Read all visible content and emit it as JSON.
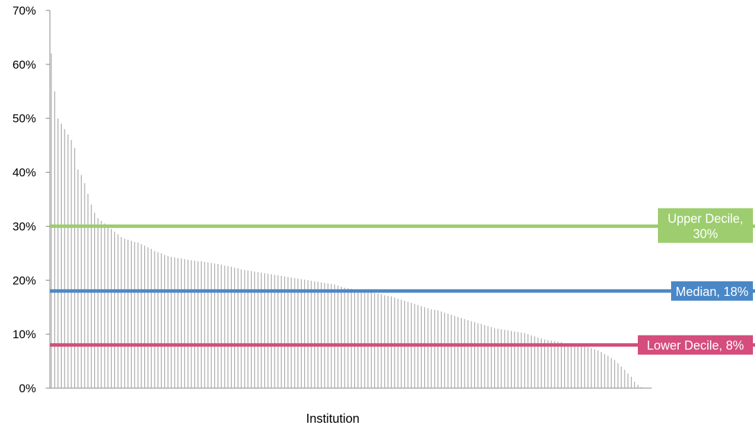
{
  "chart_data": {
    "type": "bar",
    "title": "",
    "xlabel": "Institution",
    "ylabel": "",
    "ylim": [
      0,
      0.7
    ],
    "yticks": [
      "0%",
      "10%",
      "20%",
      "30%",
      "40%",
      "50%",
      "60%",
      "70%"
    ],
    "bar_color": "#a6a6a6",
    "values": [
      0.62,
      0.55,
      0.5,
      0.49,
      0.48,
      0.47,
      0.46,
      0.445,
      0.405,
      0.395,
      0.38,
      0.36,
      0.34,
      0.325,
      0.315,
      0.31,
      0.305,
      0.3,
      0.295,
      0.29,
      0.285,
      0.28,
      0.277,
      0.275,
      0.273,
      0.271,
      0.27,
      0.267,
      0.264,
      0.261,
      0.258,
      0.254,
      0.252,
      0.25,
      0.247,
      0.245,
      0.243,
      0.242,
      0.241,
      0.24,
      0.239,
      0.238,
      0.237,
      0.236,
      0.235,
      0.235,
      0.234,
      0.233,
      0.232,
      0.231,
      0.23,
      0.229,
      0.227,
      0.226,
      0.225,
      0.223,
      0.222,
      0.22,
      0.219,
      0.218,
      0.217,
      0.216,
      0.215,
      0.214,
      0.213,
      0.212,
      0.211,
      0.21,
      0.209,
      0.208,
      0.207,
      0.206,
      0.205,
      0.204,
      0.203,
      0.202,
      0.201,
      0.2,
      0.199,
      0.198,
      0.197,
      0.196,
      0.195,
      0.194,
      0.193,
      0.192,
      0.19,
      0.188,
      0.186,
      0.185,
      0.184,
      0.183,
      0.182,
      0.181,
      0.18,
      0.179,
      0.178,
      0.176,
      0.175,
      0.174,
      0.172,
      0.171,
      0.17,
      0.168,
      0.166,
      0.164,
      0.162,
      0.16,
      0.158,
      0.156,
      0.154,
      0.152,
      0.15,
      0.148,
      0.146,
      0.145,
      0.144,
      0.142,
      0.14,
      0.138,
      0.136,
      0.134,
      0.132,
      0.13,
      0.128,
      0.126,
      0.124,
      0.122,
      0.12,
      0.119,
      0.117,
      0.115,
      0.113,
      0.111,
      0.11,
      0.109,
      0.108,
      0.107,
      0.106,
      0.105,
      0.104,
      0.103,
      0.102,
      0.1,
      0.098,
      0.096,
      0.094,
      0.092,
      0.09,
      0.089,
      0.088,
      0.087,
      0.086,
      0.085,
      0.083,
      0.082,
      0.081,
      0.08,
      0.079,
      0.078,
      0.077,
      0.076,
      0.074,
      0.072,
      0.07,
      0.067,
      0.063,
      0.06,
      0.056,
      0.052,
      0.046,
      0.04,
      0.034,
      0.027,
      0.021,
      0.012,
      0.006,
      0.002
    ],
    "reference_lines": [
      {
        "name": "Upper Decile",
        "value": 0.3,
        "label": "Upper Decile, 30%",
        "label_lines": [
          "Upper Decile,",
          "30%"
        ],
        "color": "#9dcd6e"
      },
      {
        "name": "Median",
        "value": 0.18,
        "label": "Median, 18%",
        "label_lines": [
          "Median, 18%"
        ],
        "color": "#4a87c7"
      },
      {
        "name": "Lower Decile",
        "value": 0.08,
        "label": "Lower Decile, 8%",
        "label_lines": [
          "Lower Decile, 8%"
        ],
        "color": "#d44d7c"
      }
    ],
    "grid": false,
    "legend": "none"
  }
}
